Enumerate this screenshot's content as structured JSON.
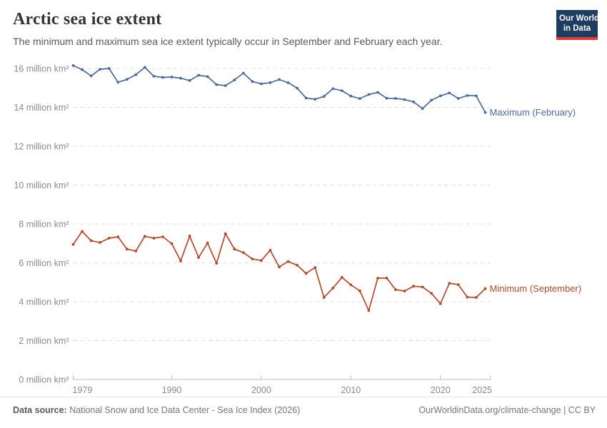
{
  "header": {
    "title": "Arctic sea ice extent",
    "subtitle": "The minimum and maximum sea ice extent typically occur in September and February each year."
  },
  "logo": {
    "line1": "Our World",
    "line2": "in Data",
    "bg_color": "#1d3d63",
    "bar_color": "#e23d33"
  },
  "chart_data": {
    "type": "line",
    "title": "Arctic sea ice extent",
    "xlabel": "",
    "ylabel": "million km²",
    "tick_suffix": " million km²",
    "grid": "dashed-horizontal",
    "legend_position": "right-of-line-end",
    "xlim": [
      1979,
      2025.6
    ],
    "ylim": [
      0,
      16
    ],
    "y_ticks": [
      0,
      2,
      4,
      6,
      8,
      10,
      12,
      14,
      16
    ],
    "x_ticks": [
      1979,
      1990,
      2000,
      2010,
      2020,
      2025
    ],
    "x": [
      1979,
      1980,
      1981,
      1982,
      1983,
      1984,
      1985,
      1986,
      1987,
      1988,
      1989,
      1990,
      1991,
      1992,
      1993,
      1994,
      1995,
      1996,
      1997,
      1998,
      1999,
      2000,
      2001,
      2002,
      2003,
      2004,
      2005,
      2006,
      2007,
      2008,
      2009,
      2010,
      2011,
      2012,
      2013,
      2014,
      2015,
      2016,
      2017,
      2018,
      2019,
      2020,
      2021,
      2022,
      2023,
      2024,
      2025
    ],
    "series": [
      {
        "name": "Maximum (February)",
        "color": "#4C6A9C",
        "values": [
          16.15,
          15.94,
          15.62,
          15.96,
          16.0,
          15.29,
          15.44,
          15.68,
          16.06,
          15.6,
          15.54,
          15.56,
          15.5,
          15.38,
          15.65,
          15.58,
          15.17,
          15.12,
          15.41,
          15.76,
          15.33,
          15.21,
          15.27,
          15.43,
          15.27,
          14.99,
          14.48,
          14.42,
          14.56,
          14.96,
          14.86,
          14.58,
          14.45,
          14.66,
          14.77,
          14.47,
          14.46,
          14.4,
          14.28,
          13.94,
          14.37,
          14.59,
          14.74,
          14.46,
          14.61,
          14.59,
          13.74
        ]
      },
      {
        "name": "Minimum (September)",
        "color": "#B5492B",
        "values": [
          6.95,
          7.62,
          7.14,
          7.05,
          7.27,
          7.34,
          6.71,
          6.61,
          7.37,
          7.27,
          7.34,
          6.99,
          6.1,
          7.38,
          6.28,
          7.02,
          5.98,
          7.5,
          6.71,
          6.53,
          6.2,
          6.12,
          6.65,
          5.79,
          6.07,
          5.88,
          5.46,
          5.76,
          4.22,
          4.7,
          5.25,
          4.87,
          4.56,
          3.55,
          5.21,
          5.22,
          4.62,
          4.55,
          4.8,
          4.76,
          4.43,
          3.9,
          4.95,
          4.88,
          4.24,
          4.22,
          4.67
        ]
      }
    ],
    "axis_color": "#bdbdbd",
    "gridline_color": "#dddddd",
    "tick_label_color": "#8a8a8a"
  },
  "footer": {
    "datasource_label": "Data source:",
    "datasource_value": " National Snow and Ice Data Center - Sea Ice Index (2026)",
    "link": "OurWorldinData.org/climate-change",
    "separator": " | ",
    "license": "CC BY"
  }
}
